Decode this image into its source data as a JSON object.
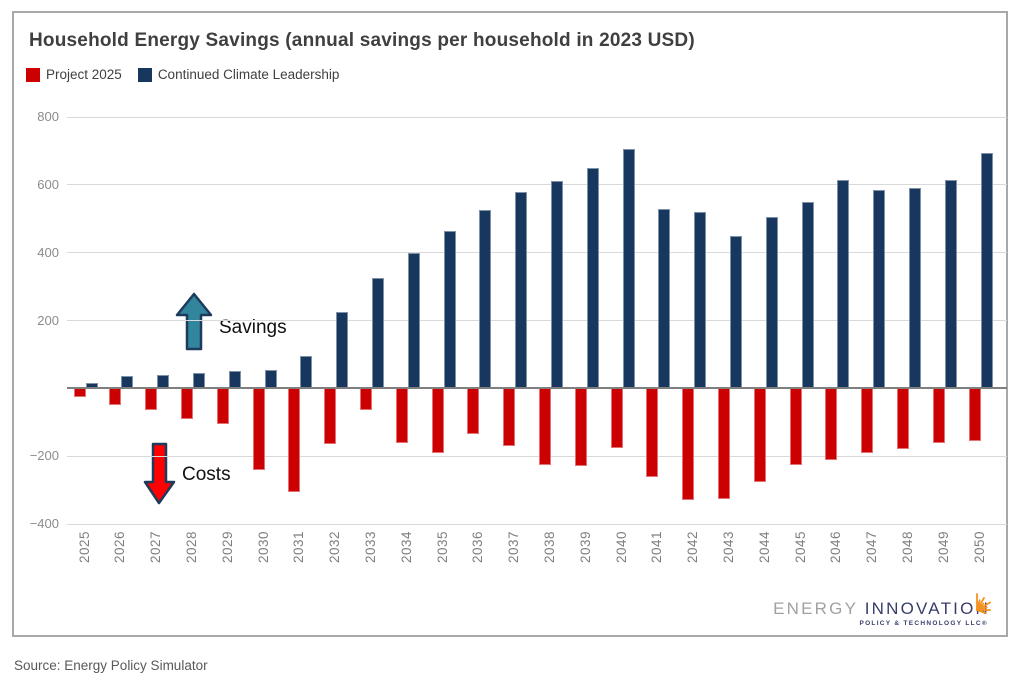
{
  "panel": {
    "title": "Household Energy Savings (annual savings per household in 2023 USD)",
    "source_note": "Source: Energy Policy Simulator"
  },
  "legend": [
    {
      "label": "Project 2025",
      "color": "#cc0000"
    },
    {
      "label": "Continued Climate Leadership",
      "color": "#17375e"
    }
  ],
  "annotations": {
    "savings_label": "Savings",
    "costs_label": "Costs"
  },
  "logo": {
    "word1": "ENERGY",
    "word2": "INNOVATION",
    "subtext": "POLICY & TECHNOLOGY LLC®"
  },
  "colors": {
    "project_2025_bar": "#cc0000",
    "climate_leadership_bar": "#17375e",
    "savings_arrow_fill": "#31859c",
    "costs_arrow_fill": "#ff0000",
    "arrow_outline": "#1e3a5c",
    "gridline": "#d9d9d9",
    "zero_line": "#7f7f7f",
    "axis_text": "#7f7f7f",
    "panel_border": "#a8a8a8"
  },
  "chart_data": {
    "type": "bar",
    "title": "Household Energy Savings (annual savings per household in 2023 USD)",
    "xlabel": "",
    "ylabel": "",
    "ylim": [
      -400,
      800
    ],
    "yticks": [
      800,
      600,
      400,
      200,
      -200,
      -400
    ],
    "grid": true,
    "legend_position": "top-left",
    "categories": [
      2025,
      2026,
      2027,
      2028,
      2029,
      2030,
      2031,
      2032,
      2033,
      2034,
      2035,
      2036,
      2037,
      2038,
      2039,
      2040,
      2041,
      2042,
      2043,
      2044,
      2045,
      2046,
      2047,
      2048,
      2049,
      2050
    ],
    "series": [
      {
        "name": "Project 2025",
        "color": "#cc0000",
        "values": [
          -25,
          -50,
          -65,
          -90,
          -105,
          -240,
          -305,
          -165,
          -65,
          -160,
          -190,
          -135,
          -170,
          -225,
          -230,
          -175,
          -260,
          -330,
          -325,
          -275,
          -225,
          -210,
          -190,
          -180,
          -160,
          -155
        ]
      },
      {
        "name": "Continued Climate Leadership",
        "color": "#17375e",
        "values": [
          15,
          35,
          40,
          45,
          50,
          55,
          95,
          225,
          325,
          400,
          465,
          525,
          580,
          610,
          650,
          705,
          530,
          520,
          450,
          505,
          550,
          615,
          585,
          590,
          615,
          695
        ]
      }
    ]
  }
}
